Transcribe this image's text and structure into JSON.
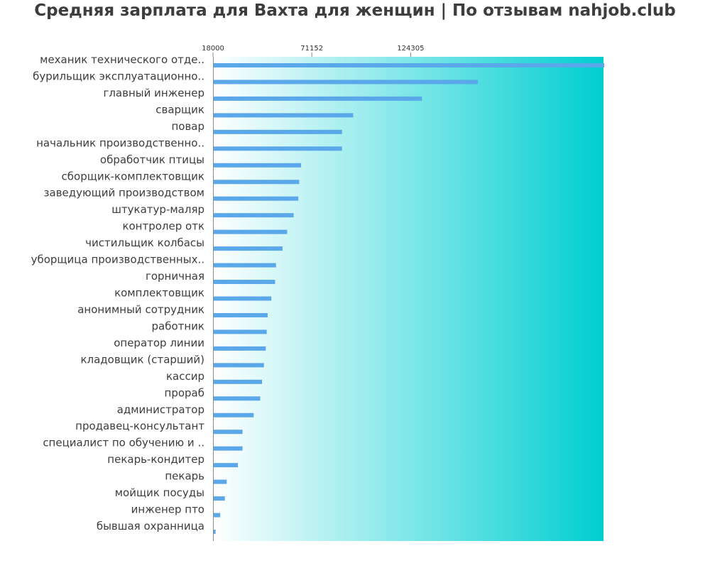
{
  "chart_data": {
    "type": "bar",
    "orientation": "horizontal",
    "title": "Средняя зарплата для Вахта для женщин | По отзывам nahjob.club",
    "xlabel": "",
    "ylabel": "",
    "xlim": [
      18000,
      228000
    ],
    "xticks": [
      "18000",
      "71152",
      "124305"
    ],
    "xtick_values": [
      18000,
      71152,
      124305
    ],
    "grid": false,
    "legend": "none",
    "background_gradient": [
      "#ffffff",
      "#00ced1"
    ],
    "bar_color": "#5aa7ea",
    "categories": [
      "механик технического отде..",
      "бурильщик эксплуатационно..",
      "главный инженер",
      "сварщик",
      "повар",
      "начальник производственно..",
      "обработчик птицы",
      "сборщик-комплектовщик",
      "заведующий производством",
      "штукатур-маляр",
      "контролер отк",
      "чистильщик колбасы",
      "уборщица производственных..",
      "горничная",
      "комплектовщик",
      "анонимный сотрудник",
      "работник",
      "оператор линии",
      "кладовщик (старший)",
      "кассир",
      "прораб",
      "администратор",
      "продавец-консультант",
      "специалист по обучению и ..",
      "пекарь-кондитер",
      "пекарь",
      "мойщик посуды",
      "инженер пто",
      "бывшая охранница"
    ],
    "values": [
      228000,
      160000,
      130000,
      93000,
      87000,
      87000,
      65000,
      64000,
      63500,
      61000,
      57500,
      55000,
      51500,
      51000,
      49000,
      47000,
      46500,
      46000,
      45000,
      44000,
      43000,
      39500,
      33500,
      33500,
      31000,
      25000,
      24000,
      21500,
      19000
    ]
  }
}
